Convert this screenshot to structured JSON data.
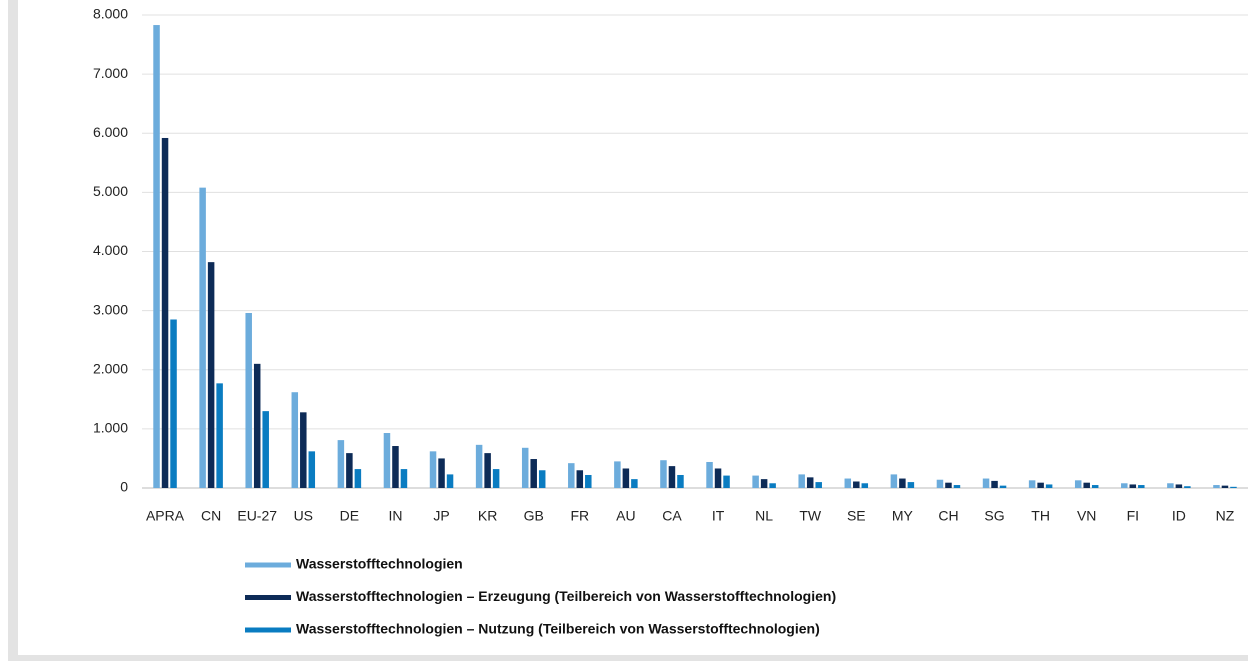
{
  "chart_data": {
    "type": "bar",
    "categories": [
      "APRA",
      "CN",
      "EU-27",
      "US",
      "DE",
      "IN",
      "JP",
      "KR",
      "GB",
      "FR",
      "AU",
      "CA",
      "IT",
      "NL",
      "TW",
      "SE",
      "MY",
      "CH",
      "SG",
      "TH",
      "VN",
      "FI",
      "ID",
      "NZ"
    ],
    "series": [
      {
        "name": "Wasserstofftechnologien",
        "color": "#6cacdc",
        "values": [
          7830,
          5080,
          2960,
          1620,
          810,
          930,
          620,
          730,
          680,
          420,
          450,
          470,
          440,
          210,
          230,
          160,
          230,
          140,
          160,
          130,
          130,
          80,
          80,
          50
        ]
      },
      {
        "name": "Wasserstofftechnologien – Erzeugung (Teilbereich von Wasserstofftechnologien)",
        "color": "#0d2b57",
        "values": [
          5920,
          3820,
          2100,
          1280,
          590,
          710,
          500,
          590,
          490,
          300,
          330,
          370,
          330,
          150,
          180,
          110,
          160,
          90,
          120,
          90,
          90,
          60,
          60,
          40
        ]
      },
      {
        "name": "Wasserstofftechnologien – Nutzung (Teilbereich von Wasserstofftechnologien)",
        "color": "#0a7cc1",
        "values": [
          2850,
          1770,
          1300,
          620,
          320,
          320,
          230,
          320,
          300,
          220,
          150,
          220,
          210,
          80,
          100,
          80,
          100,
          50,
          40,
          60,
          50,
          50,
          30,
          20
        ]
      }
    ],
    "ylim": [
      0,
      8000
    ],
    "yticks": [
      0,
      {
        "value": 1000,
        "label": "1.000"
      },
      {
        "value": 2000,
        "label": "2.000"
      },
      {
        "value": 3000,
        "label": "3.000"
      },
      {
        "value": 4000,
        "label": "4.000"
      },
      {
        "value": 5000,
        "label": "5.000"
      },
      {
        "value": 6000,
        "label": "6.000"
      },
      {
        "value": 7000,
        "label": "7.000"
      },
      {
        "value": 8000,
        "label": "8.000"
      }
    ],
    "grid": true
  }
}
